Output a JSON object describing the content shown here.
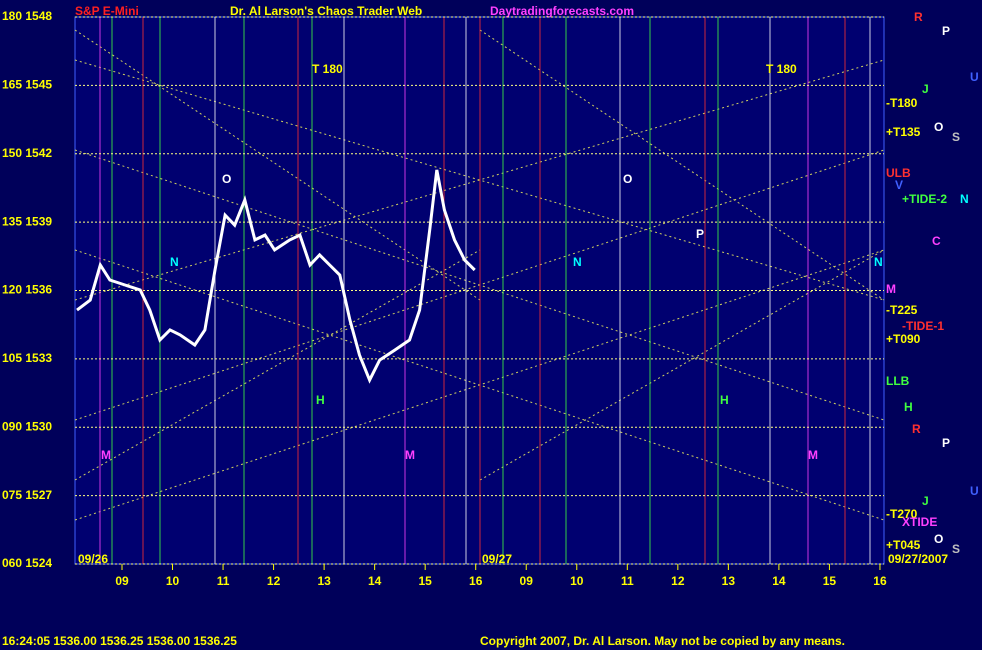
{
  "chart_data": {
    "type": "line",
    "title": "Dr. Al Larson's Chaos Trader Web",
    "instrument": "S&P E-Mini",
    "site": "Daytradingforecasts.com",
    "date_labels": [
      "09/26",
      "09/27",
      "09/27/2007"
    ],
    "xlim": [
      -0.93,
      15.08
    ],
    "xticks": [
      {
        "value": 0,
        "label": "09"
      },
      {
        "value": 1,
        "label": "10"
      },
      {
        "value": 2,
        "label": "11"
      },
      {
        "value": 3,
        "label": "12"
      },
      {
        "value": 4,
        "label": "13"
      },
      {
        "value": 5,
        "label": "14"
      },
      {
        "value": 6,
        "label": "15"
      },
      {
        "value": 7,
        "label": "16"
      },
      {
        "value": 8,
        "label": "09"
      },
      {
        "value": 9,
        "label": "10"
      },
      {
        "value": 10,
        "label": "11"
      },
      {
        "value": 11,
        "label": "12"
      },
      {
        "value": 12,
        "label": "13"
      },
      {
        "value": 13,
        "label": "14"
      },
      {
        "value": 14,
        "label": "15"
      },
      {
        "value": 15,
        "label": "16"
      }
    ],
    "ylim": [
      1524,
      1548
    ],
    "yticks": [
      {
        "value": 1548,
        "label": "180 1548"
      },
      {
        "value": 1545,
        "label": "165 1545"
      },
      {
        "value": 1542,
        "label": "150 1542"
      },
      {
        "value": 1539,
        "label": "135 1539"
      },
      {
        "value": 1536,
        "label": "120 1536"
      },
      {
        "value": 1533,
        "label": "105 1533"
      },
      {
        "value": 1530,
        "label": "090 1530"
      },
      {
        "value": 1527,
        "label": "075 1527"
      },
      {
        "value": 1524,
        "label": "060 1524"
      }
    ],
    "grid": true,
    "series": [
      {
        "name": "S&P E-Mini",
        "color": "#ffffff",
        "x": [
          -0.89,
          -0.63,
          -0.43,
          -0.24,
          0.06,
          0.36,
          0.55,
          0.75,
          0.95,
          1.15,
          1.44,
          1.64,
          1.84,
          2.04,
          2.23,
          2.43,
          2.63,
          2.83,
          3.02,
          3.32,
          3.52,
          3.72,
          3.91,
          4.11,
          4.31,
          4.51,
          4.7,
          4.9,
          5.1,
          5.4,
          5.69,
          5.89,
          6.09,
          6.23,
          6.38,
          6.58,
          6.78,
          6.98
        ],
        "values": [
          1535.14,
          1535.58,
          1537.12,
          1536.46,
          1536.24,
          1536.02,
          1535.14,
          1533.83,
          1534.27,
          1534.05,
          1533.61,
          1534.27,
          1536.9,
          1539.31,
          1538.87,
          1539.97,
          1538.22,
          1538.43,
          1537.78,
          1538.22,
          1538.43,
          1537.12,
          1537.56,
          1537.12,
          1536.68,
          1534.71,
          1533.17,
          1532.07,
          1532.95,
          1533.39,
          1533.83,
          1535.14,
          1538.65,
          1541.29,
          1539.53,
          1538.22,
          1537.34,
          1536.9
        ]
      }
    ],
    "right_labels": [
      "-T180",
      "+T135",
      "ULB",
      "+TIDE-2",
      "M",
      "-T225",
      "-TIDE-1",
      "+T090",
      "LLB",
      "-T270",
      "XTIDE",
      "+T045"
    ],
    "planet_labels": [
      "R",
      "P",
      "U",
      "J",
      "O",
      "S",
      "V",
      "N",
      "C",
      "H",
      "R",
      "P",
      "J",
      "U",
      "O",
      "S"
    ],
    "annotations": [
      "T 180",
      "T 180",
      "O",
      "O",
      "P",
      "N",
      "N",
      "N",
      "M",
      "M",
      "M",
      "H",
      "H"
    ],
    "quote": "16:24:05  1536.00  1536.25  1536.00  1536.25",
    "copyright": "Copyright 2007, Dr. Al Larson. May not be copied by any means."
  }
}
